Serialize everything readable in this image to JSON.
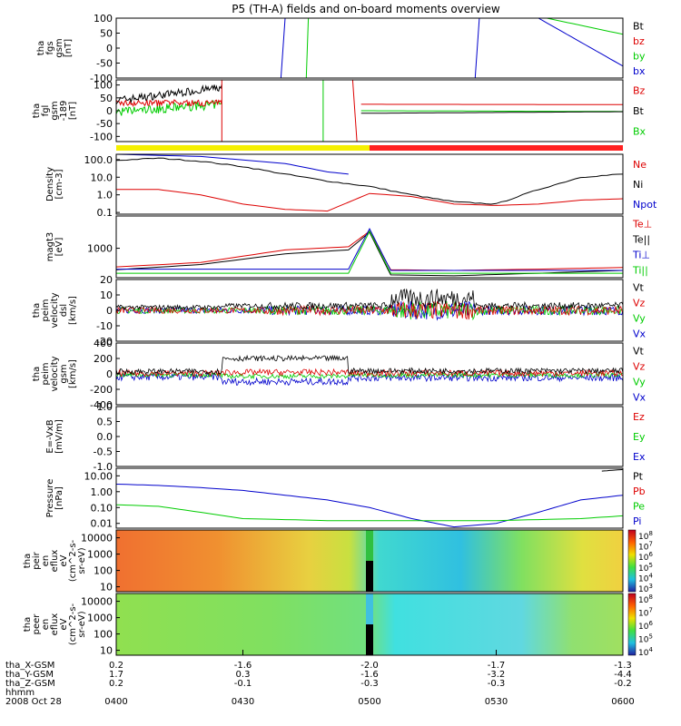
{
  "title": "P5 (TH-A) fields and on-board moments overview",
  "chart_data": {
    "type": "multi-panel-timeseries",
    "title": "P5 (TH-A) fields and on-board moments overview",
    "time_axis": {
      "hhmm_ticks": [
        "0400",
        "0430",
        "0500",
        "0530",
        "0600"
      ],
      "rows": [
        {
          "label": "tha_X-GSM",
          "values": [
            "0.2",
            "-1.6",
            "-2.0",
            "-1.7",
            "-1.3"
          ]
        },
        {
          "label": "tha_Y-GSM",
          "values": [
            "1.7",
            "0.3",
            "-1.6",
            "-3.2",
            "-4.4"
          ]
        },
        {
          "label": "tha_Z-GSM",
          "values": [
            "0.2",
            "-0.1",
            "-0.3",
            "-0.3",
            "-0.2"
          ]
        },
        {
          "label": "hhmm",
          "values": []
        }
      ],
      "date": "2008 Oct 28"
    },
    "colors": {
      "black": "#000000",
      "red": "#dd0000",
      "green": "#00cc00",
      "blue": "#0000cc",
      "yellow": "#f5f000",
      "bar_red": "#ff2020"
    },
    "panels": [
      {
        "id": "fgs",
        "ylabel": [
          "tha",
          "fgs",
          "gsm",
          "[nT]"
        ],
        "scale": "linear",
        "ylim": [
          -100,
          100
        ],
        "ticks": [
          "100",
          "50",
          "0",
          "-50",
          "-100"
        ],
        "legend": [
          {
            "name": "Bt",
            "color": "black"
          },
          {
            "name": "bz",
            "color": "red"
          },
          {
            "name": "by",
            "color": "green"
          },
          {
            "name": "bx",
            "color": "blue"
          }
        ]
      },
      {
        "id": "fgl",
        "ylabel": [
          "tha",
          "fgl",
          "gsm",
          "-189",
          "[nT]"
        ],
        "scale": "linear",
        "ylim": [
          -120,
          120
        ],
        "ticks": [
          "100",
          "50",
          "0",
          "-50",
          "-100"
        ],
        "legend": [
          {
            "name": "Bz",
            "color": "red"
          },
          {
            "name": "Bt",
            "color": "black"
          },
          {
            "name": "Bx",
            "color": "green"
          }
        ]
      },
      {
        "id": "density",
        "ylabel": [
          "Density",
          "[cm-3]"
        ],
        "scale": "log",
        "ylim": [
          0.08,
          200
        ],
        "ticks": [
          "100.0",
          "10.0",
          "1.0",
          "0.1"
        ],
        "legend": [
          {
            "name": "Ne",
            "color": "red"
          },
          {
            "name": "Ni",
            "color": "black"
          },
          {
            "name": "Npot",
            "color": "blue"
          }
        ]
      },
      {
        "id": "temp",
        "ylabel": [
          "magt3",
          "[eV]"
        ],
        "scale": "log",
        "ylim": [
          150,
          8000
        ],
        "ticks": [
          "1000"
        ],
        "legend": [
          {
            "name": "Te⊥",
            "color": "red"
          },
          {
            "name": "Te||",
            "color": "black"
          },
          {
            "name": "Ti⊥",
            "color": "blue"
          },
          {
            "name": "Ti||",
            "color": "green"
          }
        ]
      },
      {
        "id": "velocity_e",
        "ylabel": [
          "tha",
          "peim",
          "velocity",
          "dsl",
          "[km/s]"
        ],
        "scale": "linear",
        "ylim": [
          -20,
          20
        ],
        "ticks": [
          "20",
          "10",
          "0",
          "-10",
          "-20"
        ],
        "legend": [
          {
            "name": "Vt",
            "color": "black"
          },
          {
            "name": "Vz",
            "color": "red"
          },
          {
            "name": "Vy",
            "color": "green"
          },
          {
            "name": "Vx",
            "color": "blue"
          }
        ]
      },
      {
        "id": "velocity_i",
        "ylabel": [
          "tha",
          "peim",
          "velocity",
          "gsm",
          "[km/s]"
        ],
        "scale": "linear",
        "ylim": [
          -400,
          400
        ],
        "ticks": [
          "400",
          "200",
          "0",
          "-200",
          "-400"
        ],
        "legend": [
          {
            "name": "Vt",
            "color": "black"
          },
          {
            "name": "Vz",
            "color": "red"
          },
          {
            "name": "Vy",
            "color": "green"
          },
          {
            "name": "Vx",
            "color": "blue"
          }
        ]
      },
      {
        "id": "efield",
        "ylabel": [
          "E=-VxB",
          "[mV/m]"
        ],
        "scale": "linear",
        "ylim": [
          -1,
          1
        ],
        "ticks": [
          "1.0",
          "0.5",
          "0.0",
          "-0.5",
          "-1.0"
        ],
        "legend": [
          {
            "name": "Ez",
            "color": "red"
          },
          {
            "name": "Ey",
            "color": "green"
          },
          {
            "name": "Ex",
            "color": "blue"
          }
        ]
      },
      {
        "id": "pressure",
        "ylabel": [
          "Pressure",
          "[nPa]"
        ],
        "scale": "log",
        "ylim": [
          0.005,
          30
        ],
        "ticks": [
          "10.00",
          "1.00",
          "0.10",
          "0.01"
        ],
        "legend": [
          {
            "name": "Pt",
            "color": "black"
          },
          {
            "name": "Pb",
            "color": "red"
          },
          {
            "name": "Pe",
            "color": "green"
          },
          {
            "name": "Pi",
            "color": "blue"
          }
        ]
      },
      {
        "id": "ion_spec",
        "ylabel": [
          "tha",
          "peir",
          "en",
          "eflux",
          "eV",
          "(cm^2-s-",
          "sr-eV)"
        ],
        "scale": "log",
        "ylim": [
          5,
          30000
        ],
        "ticks": [
          "10000",
          "1000",
          "100",
          "10"
        ],
        "colorbar": [
          "10^8",
          "10^7",
          "10^6",
          "10^5",
          "10^4",
          "10^3"
        ]
      },
      {
        "id": "elec_spec",
        "ylabel": [
          "tha",
          "peer",
          "en",
          "eflux",
          "eV",
          "(cm^2-s-",
          "sr-eV)"
        ],
        "scale": "log",
        "ylim": [
          5,
          30000
        ],
        "ticks": [
          "10000",
          "1000",
          "100",
          "10"
        ],
        "colorbar": [
          "10^8",
          "10^7",
          "10^6",
          "10^5",
          "10^4"
        ]
      }
    ],
    "mode_bar": [
      {
        "from": "0400",
        "to": "0500",
        "color": "yellow"
      },
      {
        "from": "0500",
        "to": "0600",
        "color": "bar_red"
      }
    ],
    "series": {
      "density": [
        {
          "name": "Ni",
          "color": "black",
          "x": [
            "0400",
            "0410",
            "0420",
            "0430",
            "0440",
            "0450",
            "0500",
            "0510",
            "0520",
            "0530",
            "0540",
            "0550",
            "0600"
          ],
          "y": [
            90,
            120,
            80,
            40,
            15,
            6,
            3,
            1,
            0.4,
            0.3,
            2,
            10,
            15
          ]
        },
        {
          "name": "Ne",
          "color": "red",
          "x": [
            "0400",
            "0410",
            "0420",
            "0430",
            "0440",
            "0450",
            "0500",
            "0510",
            "0520",
            "0530",
            "0540",
            "0550",
            "0600"
          ],
          "y": [
            2,
            2,
            1,
            0.3,
            0.15,
            0.12,
            1.2,
            0.8,
            0.3,
            0.25,
            0.3,
            0.5,
            0.6
          ]
        },
        {
          "name": "Npot",
          "color": "blue",
          "x": [
            "0400",
            "0420",
            "0440",
            "0450",
            "0455"
          ],
          "y": [
            200,
            150,
            60,
            20,
            15
          ]
        }
      ],
      "temp": [
        {
          "name": "Te⊥",
          "color": "red",
          "x": [
            "0400",
            "0420",
            "0440",
            "0455",
            "0500",
            "0505",
            "0520",
            "0540",
            "0600"
          ],
          "y": [
            300,
            400,
            900,
            1100,
            3000,
            250,
            240,
            260,
            290
          ]
        },
        {
          "name": "Te||",
          "color": "black",
          "x": [
            "0400",
            "0420",
            "0440",
            "0455",
            "0500",
            "0505",
            "0520",
            "0540",
            "0600"
          ],
          "y": [
            250,
            350,
            700,
            900,
            2800,
            180,
            170,
            200,
            240
          ]
        },
        {
          "name": "Ti⊥",
          "color": "blue",
          "x": [
            "0400",
            "0440",
            "0455",
            "0500",
            "0505",
            "0600"
          ],
          "y": [
            260,
            260,
            260,
            3500,
            240,
            240
          ]
        },
        {
          "name": "Ti||",
          "color": "green",
          "x": [
            "0400",
            "0440",
            "0455",
            "0500",
            "0505",
            "0600"
          ],
          "y": [
            200,
            200,
            200,
            3000,
            200,
            200
          ]
        }
      ],
      "pressure": [
        {
          "name": "Pi",
          "color": "blue",
          "x": [
            "0400",
            "0410",
            "0420",
            "0430",
            "0440",
            "0450",
            "0500",
            "0510",
            "0520",
            "0530",
            "0540",
            "0550",
            "0600"
          ],
          "y": [
            3,
            2.5,
            1.8,
            1.2,
            0.6,
            0.3,
            0.1,
            0.02,
            0.006,
            0.01,
            0.05,
            0.3,
            0.6
          ]
        },
        {
          "name": "Pe",
          "color": "green",
          "x": [
            "0400",
            "0410",
            "0420",
            "0430",
            "0450",
            "0500",
            "0510",
            "0530",
            "0550",
            "0600"
          ],
          "y": [
            0.15,
            0.12,
            0.05,
            0.02,
            0.015,
            0.015,
            0.015,
            0.015,
            0.02,
            0.03
          ]
        },
        {
          "name": "Pt",
          "color": "black",
          "x": [
            "0555",
            "0600"
          ],
          "y": [
            20,
            25
          ]
        }
      ]
    }
  }
}
